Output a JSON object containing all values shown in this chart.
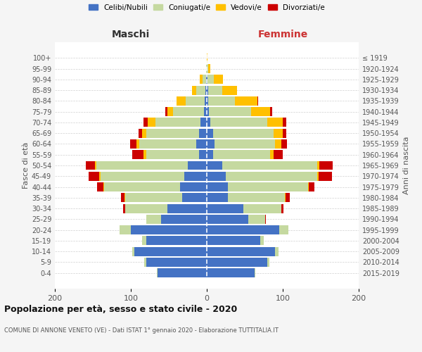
{
  "age_groups": [
    "0-4",
    "5-9",
    "10-14",
    "15-19",
    "20-24",
    "25-29",
    "30-34",
    "35-39",
    "40-44",
    "45-49",
    "50-54",
    "55-59",
    "60-64",
    "65-69",
    "70-74",
    "75-79",
    "80-84",
    "85-89",
    "90-94",
    "95-99",
    "100+"
  ],
  "birth_years": [
    "2015-2019",
    "2010-2014",
    "2005-2009",
    "2000-2004",
    "1995-1999",
    "1990-1994",
    "1985-1989",
    "1980-1984",
    "1975-1979",
    "1970-1974",
    "1965-1969",
    "1960-1964",
    "1955-1959",
    "1950-1954",
    "1945-1949",
    "1940-1944",
    "1935-1939",
    "1930-1934",
    "1925-1929",
    "1920-1924",
    "≤ 1919"
  ],
  "colors": {
    "celibi": "#4472c4",
    "coniugati": "#c5d9a0",
    "vedovi": "#ffc000",
    "divorziati": "#cc0000"
  },
  "maschi": {
    "celibi": [
      65,
      80,
      95,
      80,
      100,
      60,
      52,
      32,
      35,
      30,
      25,
      10,
      14,
      10,
      8,
      4,
      3,
      2,
      1,
      0,
      0
    ],
    "coniugati": [
      1,
      2,
      3,
      5,
      15,
      20,
      55,
      75,
      100,
      110,
      120,
      70,
      75,
      70,
      60,
      40,
      25,
      12,
      5,
      1,
      0
    ],
    "vedovi": [
      0,
      0,
      0,
      0,
      0,
      0,
      0,
      1,
      1,
      2,
      2,
      3,
      4,
      5,
      10,
      8,
      12,
      5,
      3,
      0,
      0
    ],
    "divorziati": [
      0,
      0,
      0,
      0,
      0,
      0,
      3,
      5,
      8,
      14,
      12,
      15,
      8,
      5,
      5,
      3,
      0,
      0,
      0,
      0,
      0
    ]
  },
  "femmine": {
    "nubili": [
      63,
      80,
      90,
      70,
      95,
      55,
      48,
      28,
      28,
      25,
      20,
      8,
      10,
      8,
      5,
      3,
      2,
      2,
      1,
      0,
      0
    ],
    "coniugate": [
      1,
      2,
      4,
      5,
      12,
      22,
      50,
      75,
      105,
      120,
      125,
      75,
      80,
      80,
      75,
      55,
      35,
      18,
      8,
      2,
      0
    ],
    "vedove": [
      0,
      0,
      0,
      0,
      0,
      0,
      0,
      1,
      1,
      2,
      3,
      5,
      8,
      12,
      20,
      25,
      30,
      20,
      12,
      3,
      1
    ],
    "divorziate": [
      0,
      0,
      0,
      0,
      0,
      1,
      3,
      5,
      8,
      18,
      18,
      12,
      8,
      5,
      5,
      3,
      1,
      0,
      0,
      0,
      0
    ]
  },
  "xlim": 200,
  "title1": "Popolazione per età, sesso e stato civile - 2020",
  "title2": "COMUNE DI ANNONE VENETO (VE) - Dati ISTAT 1° gennaio 2020 - Elaborazione TUTTITALIA.IT",
  "xlabel_left": "Maschi",
  "xlabel_right": "Femmine",
  "ylabel_left": "Fasce di età",
  "ylabel_right": "Anni di nascita",
  "legend_labels": [
    "Celibi/Nubili",
    "Coniugati/e",
    "Vedovi/e",
    "Divorziati/e"
  ],
  "bg_color": "#f5f5f5",
  "plot_bg_color": "#ffffff",
  "grid_color": "#cccccc"
}
